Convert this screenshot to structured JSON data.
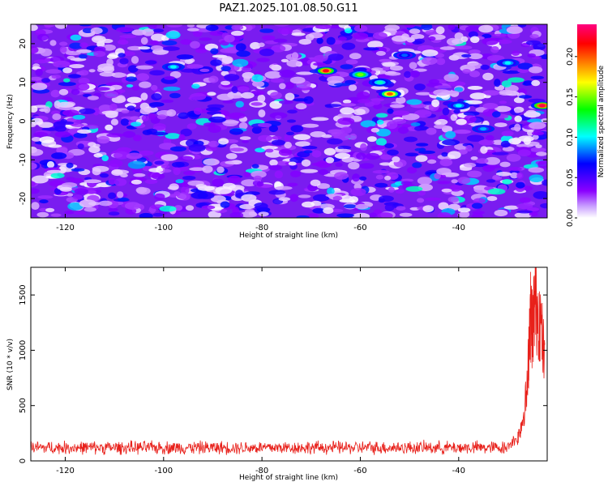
{
  "title": "PAZ1.2025.101.08.50.G11",
  "colors": {
    "snr_line": "#e8201a",
    "axis": "#000000",
    "background": "#ffffff"
  },
  "chart_data": [
    {
      "type": "heatmap",
      "xlabel": "Height of straight line (km)",
      "ylabel": "Frequency (Hz)",
      "xlim": [
        -127,
        -22
      ],
      "ylim": [
        -25,
        25
      ],
      "xticks": [
        -120,
        -100,
        -80,
        -60,
        -40
      ],
      "yticks": [
        -20,
        -10,
        0,
        10,
        20
      ],
      "colorbar": {
        "label": "Normalized spectral amplitude",
        "range": [
          0.0,
          0.24
        ],
        "ticks": [
          "0.00",
          "0.05",
          "0.10",
          "0.15",
          "0.20"
        ],
        "colormap": [
          "#ffffff",
          "#8a00ff",
          "#0000ff",
          "#00ffff",
          "#00ff00",
          "#ffff00",
          "#ff8000",
          "#ff0000",
          "#ff0080"
        ]
      },
      "hotspots": [
        {
          "x": -67,
          "y": 13,
          "value": 0.22
        },
        {
          "x": -54,
          "y": 7,
          "value": 0.2
        },
        {
          "x": -23,
          "y": 4,
          "value": 0.23
        },
        {
          "x": -60,
          "y": 12,
          "value": 0.15
        },
        {
          "x": -98,
          "y": 14,
          "value": 0.1
        },
        {
          "x": -40,
          "y": 4,
          "value": 0.1
        },
        {
          "x": -30,
          "y": 15,
          "value": 0.1
        },
        {
          "x": -51,
          "y": 17,
          "value": 0.08
        },
        {
          "x": -35,
          "y": -2,
          "value": 0.09
        },
        {
          "x": -56,
          "y": 10,
          "value": 0.11
        }
      ]
    },
    {
      "type": "line",
      "xlabel": "Height of straight line (km)",
      "ylabel": "SNR (10 * v/v)",
      "xlim": [
        -127,
        -22
      ],
      "ylim": [
        0,
        1750
      ],
      "xticks": [
        -120,
        -100,
        -80,
        -60,
        -40
      ],
      "yticks": [
        0,
        500,
        1000,
        1500
      ],
      "series": [
        {
          "baseline_mean": 120,
          "baseline_spread": 90,
          "rise_points": [
            {
              "x": -30,
              "y": 180
            },
            {
              "x": -28,
              "y": 250
            },
            {
              "x": -27,
              "y": 450
            },
            {
              "x": -26,
              "y": 800
            },
            {
              "x": -25.5,
              "y": 1640
            },
            {
              "x": -25,
              "y": 1450
            },
            {
              "x": -24.5,
              "y": 1750
            },
            {
              "x": -23.5,
              "y": 1600
            },
            {
              "x": -22.5,
              "y": 1050
            }
          ]
        }
      ]
    }
  ]
}
